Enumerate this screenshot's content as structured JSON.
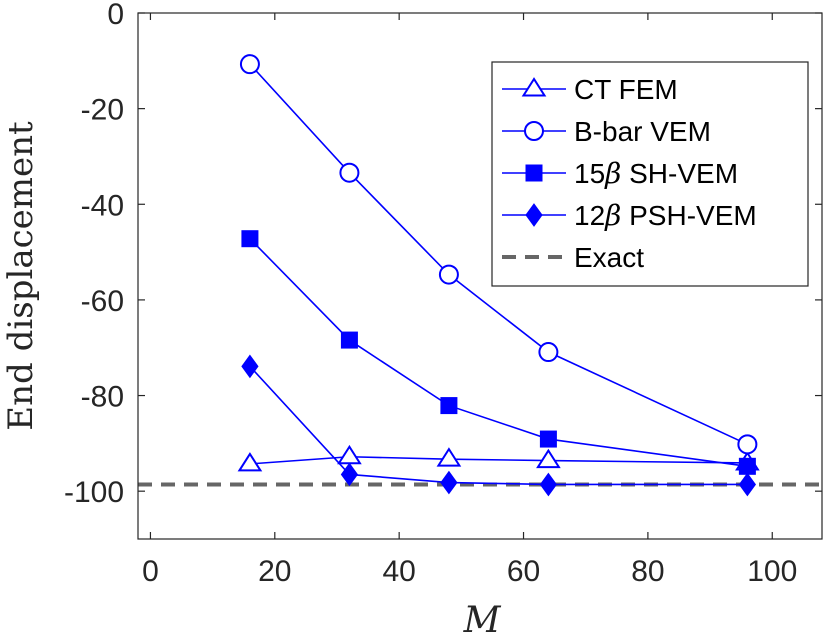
{
  "chart_data": {
    "type": "line",
    "title": "",
    "xlabel": "M",
    "ylabel": "End displacement",
    "xlim": [
      -2,
      108
    ],
    "ylim": [
      -110,
      0
    ],
    "xticks": [
      0,
      20,
      40,
      60,
      80,
      100
    ],
    "yticks": [
      0,
      -20,
      -40,
      -60,
      -80,
      -100
    ],
    "grid": false,
    "legend_position": "top-right",
    "series": [
      {
        "name": "CT FEM",
        "marker": "triangle-open",
        "color": "#0000ff",
        "x": [
          16,
          32,
          48,
          64,
          96
        ],
        "y": [
          -94.3,
          -92.8,
          -93.3,
          -93.6,
          -94.1
        ]
      },
      {
        "name": "B-bar VEM",
        "marker": "circle-open",
        "color": "#0000ff",
        "x": [
          16,
          32,
          48,
          64,
          96
        ],
        "y": [
          -10.7,
          -33.4,
          -54.7,
          -70.9,
          -90.2
        ]
      },
      {
        "name": "15β SH-VEM",
        "marker": "square-filled",
        "color": "#0000ff",
        "x": [
          16,
          32,
          48,
          64,
          96
        ],
        "y": [
          -47.2,
          -68.4,
          -82.1,
          -89.1,
          -94.8
        ]
      },
      {
        "name": "12β PSH-VEM",
        "marker": "diamond-filled",
        "color": "#0000ff",
        "x": [
          16,
          32,
          48,
          64,
          96
        ],
        "y": [
          -73.9,
          -96.5,
          -98.2,
          -98.6,
          -98.6
        ]
      },
      {
        "name": "Exact",
        "style": "dashed",
        "color": "#666666",
        "y_const": -98.6
      }
    ],
    "legend": [
      {
        "label": "CT FEM",
        "label_parts": [
          "CT FEM"
        ]
      },
      {
        "label": "B-bar VEM",
        "label_parts": [
          "B-bar VEM"
        ]
      },
      {
        "label": "15β SH-VEM",
        "label_parts": [
          "15",
          "β",
          " SH-VEM"
        ]
      },
      {
        "label": "12β PSH-VEM",
        "label_parts": [
          "12",
          "β",
          " PSH-VEM"
        ]
      },
      {
        "label": "Exact",
        "label_parts": [
          "Exact"
        ]
      }
    ]
  }
}
